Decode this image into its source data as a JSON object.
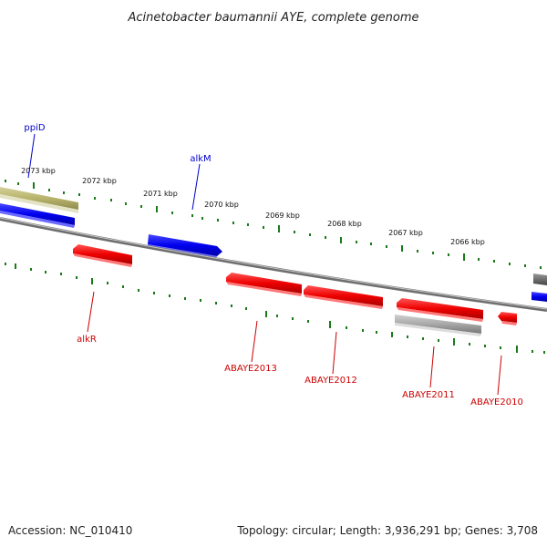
{
  "title": "Acinetobacter baumannii AYE, complete genome",
  "accession": "Accession: NC_010410",
  "topology": "Topology: circular; Length: 3,936,291 bp; Genes: 3,708",
  "colors": {
    "forward_gene": "#0000ee",
    "reverse_gene": "#ee0000",
    "olive_feature": "#b8b46c",
    "gray_feature": "#a0a0a0",
    "backbone": "#888888",
    "ticks": "#1a7a1a",
    "upper_label": "#0000cc",
    "lower_label": "#cc0000"
  },
  "tick_labels": [
    "2073 kbp",
    "2072 kbp",
    "2071 kbp",
    "2070 kbp",
    "2069 kbp",
    "2068 kbp",
    "2067 kbp",
    "2066 kbp"
  ],
  "genes_upper": [
    {
      "name": "ppiD"
    },
    {
      "name": "alkM"
    }
  ],
  "genes_lower": [
    {
      "name": "alkR"
    },
    {
      "name": "ABAYE2013"
    },
    {
      "name": "ABAYE2012"
    },
    {
      "name": "ABAYE2011"
    },
    {
      "name": "ABAYE2010"
    }
  ]
}
